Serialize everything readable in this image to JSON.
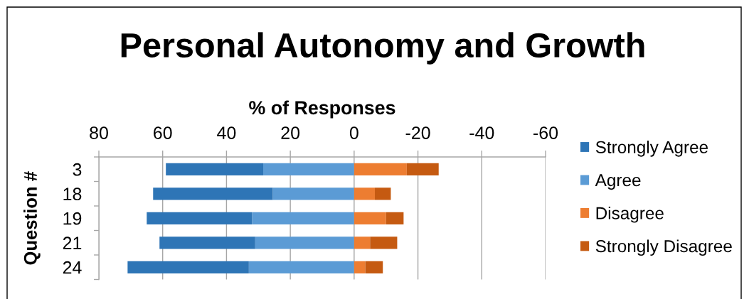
{
  "chart_data": {
    "type": "bar",
    "orientation": "horizontal",
    "stacked": true,
    "title": "Personal Autonomy and Growth",
    "xlabel": "% of Responses",
    "ylabel": "Question #",
    "categories": [
      "3",
      "18",
      "19",
      "21",
      "24"
    ],
    "series": [
      {
        "name": "Agree",
        "color": "#5b9bd5",
        "values": [
          28.5,
          25.5,
          32,
          31,
          33
        ]
      },
      {
        "name": "Strongly Agree",
        "color": "#2e75b6",
        "values": [
          30.5,
          37.5,
          33,
          30,
          38
        ]
      },
      {
        "name": "Disagree",
        "color": "#ed7d31",
        "values": [
          -16.5,
          -6.5,
          -10,
          -5,
          -3.5
        ]
      },
      {
        "name": "Strongly Disagree",
        "color": "#c55a11",
        "values": [
          -10,
          -5,
          -5.5,
          -8.5,
          -5.5
        ]
      }
    ],
    "xlim": [
      80,
      -60
    ],
    "xticks": [
      80,
      60,
      40,
      20,
      0,
      -20,
      -40,
      -60
    ],
    "grid": "x",
    "legend": "right"
  }
}
